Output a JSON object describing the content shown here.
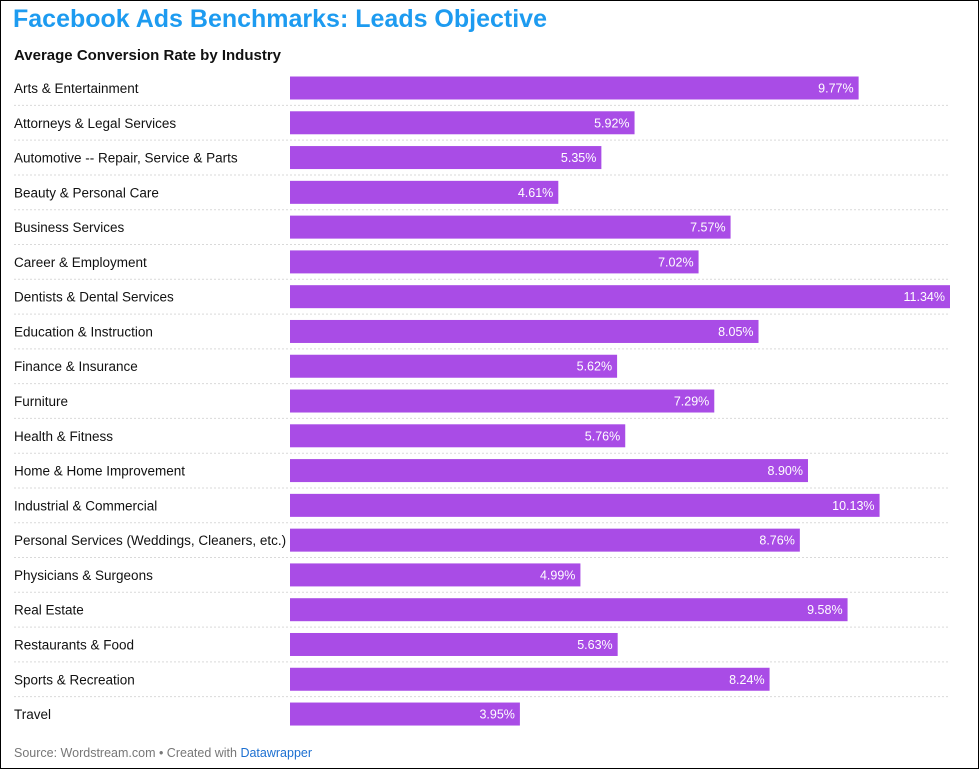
{
  "header": {
    "title": "Facebook Ads Benchmarks: Leads Objective",
    "subtitle": "Average Conversion Rate by Industry"
  },
  "footer": {
    "source": "Source: Wordstream.com • Created with ",
    "link_label": "Datawrapper"
  },
  "colors": {
    "title": "#1d9bf0",
    "bar": "#a94ce6",
    "value_label": "#ffffff",
    "divider": "#d9d9d9",
    "footer_link": "#1b6fd1"
  },
  "chart_data": {
    "type": "bar",
    "orientation": "horizontal",
    "title": "Average Conversion Rate by Industry",
    "value_suffix": "%",
    "xlim": [
      0,
      11.34
    ],
    "categories": [
      "Arts & Entertainment",
      "Attorneys & Legal Services",
      "Automotive -- Repair, Service & Parts",
      "Beauty & Personal Care",
      "Business Services",
      "Career & Employment",
      "Dentists & Dental Services",
      "Education & Instruction",
      "Finance & Insurance",
      "Furniture",
      "Health & Fitness",
      "Home & Home Improvement",
      "Industrial & Commercial",
      "Personal Services (Weddings, Cleaners, etc.)",
      "Physicians & Surgeons",
      "Real Estate",
      "Restaurants & Food",
      "Sports & Recreation",
      "Travel"
    ],
    "values": [
      9.77,
      5.92,
      5.35,
      4.61,
      7.57,
      7.02,
      11.34,
      8.05,
      5.62,
      7.29,
      5.76,
      8.9,
      10.13,
      8.76,
      4.99,
      9.58,
      5.63,
      8.24,
      3.95
    ],
    "value_labels": [
      "9.77%",
      "5.92%",
      "5.35%",
      "4.61%",
      "7.57%",
      "7.02%",
      "11.34%",
      "8.05%",
      "5.62%",
      "7.29%",
      "5.76%",
      "8.90%",
      "10.13%",
      "8.76%",
      "4.99%",
      "9.58%",
      "5.63%",
      "8.24%",
      "3.95%"
    ]
  }
}
